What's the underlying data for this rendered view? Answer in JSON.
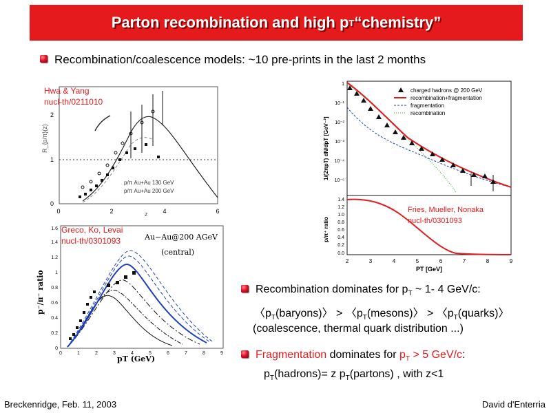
{
  "title": {
    "text": "Parton recombination and high p",
    "sub": "T",
    "text2": " “chemistry”"
  },
  "intro": "Recombination/coalescence models: ~10 pre-prints in the last 2 months",
  "panel_hwa": {
    "ref_authors": "Hwa & Yang",
    "ref_id": "nucl-th/0211010",
    "ylabel": "R_{p/π}(z)",
    "xlabel": "z",
    "legend": [
      "p/π Au+Au 130 GeV",
      "p/π Au+Au 200 GeV"
    ],
    "xticks": [
      "0",
      "2",
      "4",
      "6"
    ],
    "yticks": [
      "0",
      "1",
      "2"
    ]
  },
  "panel_greco": {
    "ref_authors": "Greco, Ko, Levai",
    "ref_id": "nucl-th/0301093",
    "system": "Au−Au@200 AGeV",
    "centrality": "(central)",
    "ylabel": "p⁻/π⁻ ratio",
    "xlabel": "pT (GeV)",
    "xticks": [
      "0",
      "1",
      "2",
      "3",
      "4",
      "5",
      "6",
      "7",
      "8",
      "9"
    ],
    "yticks": [
      "0",
      "0.2",
      "0.4",
      "0.6",
      "0.8",
      "1",
      "1.2",
      "1.4",
      "1.6"
    ]
  },
  "panel_fries": {
    "ref_authors": "Fries, Mueller, Nonaka",
    "ref_id": "nucl-th/0301093",
    "legend": [
      "charged hadrons @ 200 GeV",
      "recombination+fragmentation",
      "fragmentation",
      "recombination"
    ],
    "ylabel_top": "1/(2πpT) dN/dpT [GeV⁻²]",
    "ylabel_bottom": "p/π⁺ ratio",
    "xlabel": "PT [GeV]",
    "yticks_top": [
      "1",
      "10⁻¹",
      "10⁻²",
      "10⁻³",
      "10⁻⁴",
      "10⁻⁵"
    ],
    "yticks_bottom": [
      "1.4",
      "1.2",
      "1.0",
      "0.8",
      "0.6",
      "0.4",
      "0.2",
      "0.0"
    ],
    "xticks": [
      "2",
      "3",
      "4",
      "5",
      "6",
      "7",
      "8",
      "9"
    ]
  },
  "bullet_recomb": {
    "pre": "Recombination dominates for p",
    "sub": "T",
    "post": " ~ 1- 4 GeV/c:"
  },
  "ordering": {
    "a": "〈p",
    "a_sub": "T",
    "b": "(baryons)〉 > 〈p",
    "b_sub": "T",
    "c": "(mesons)〉 > 〈p",
    "c_sub": "T",
    "d": "(quarks)〉"
  },
  "coalescence_note": "(coalescence, thermal quark distribution ...)",
  "bullet_frag": {
    "word": "Fragmentation",
    "mid": " dominates for ",
    "p": "p",
    "sub": "T",
    "val": " > 5 GeV/c",
    "colon": ":"
  },
  "frag_formula": {
    "a": "p",
    "a_sub": "T",
    "b": "(hadrons)= z p",
    "b_sub": "T",
    "c": "(partons) , with z<1"
  },
  "footer": {
    "left": "Breckenridge, Feb. 11, 2003",
    "right": "David d'Enterria"
  },
  "colors": {
    "title_bg": "#e41a1c",
    "accent_red": "#e41a1c",
    "blue_curve": "#1f3fbf",
    "green_curve": "#2ca02c"
  }
}
